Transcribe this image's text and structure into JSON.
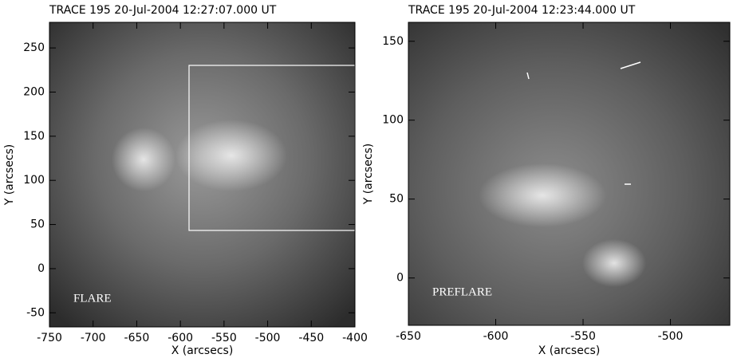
{
  "chart_data": [
    {
      "type": "image",
      "title": "TRACE 195 20-Jul-2004 12:27:07.000 UT",
      "xlabel": "X (arcsecs)",
      "ylabel": "Y (arcsecs)",
      "xlim": [
        -750,
        -400
      ],
      "xticks": [
        -750,
        -700,
        -650,
        -600,
        -550,
        -500,
        -450,
        -400
      ],
      "ylim": [
        -66,
        279
      ],
      "yticks": [
        -50,
        0,
        50,
        100,
        150,
        200,
        250
      ],
      "annotation": "FLARE"
    },
    {
      "type": "image",
      "title": "TRACE 195 20-Jul-2004 12:23:44.000 UT",
      "xlabel": "X (arcsecs)",
      "ylabel": "Y (arcsecs)",
      "xlim": [
        -650,
        -466
      ],
      "xticks": [
        -650,
        -600,
        -550,
        -500
      ],
      "ylim": [
        -30,
        162
      ],
      "yticks": [
        0,
        50,
        100,
        150
      ],
      "annotation": "PREFLARE"
    }
  ]
}
